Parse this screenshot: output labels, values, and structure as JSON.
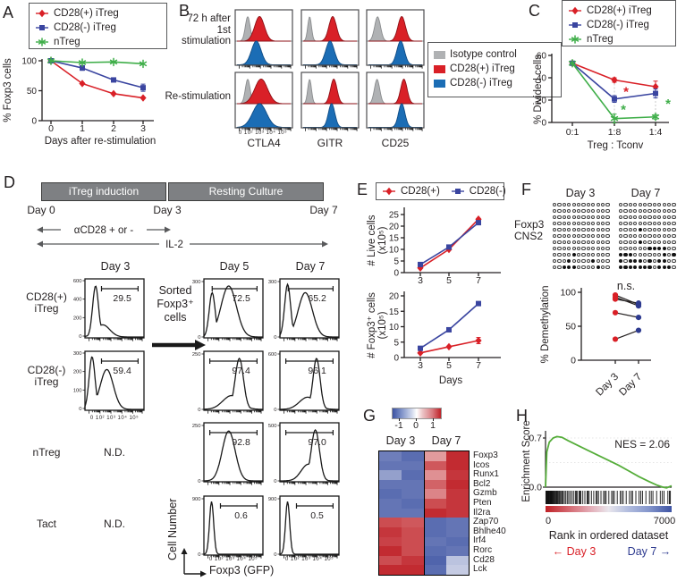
{
  "panel_a": {
    "label": "A",
    "legend": [
      {
        "text": "CD28(+) iTreg",
        "color": "#d92027",
        "marker": "diamond"
      },
      {
        "text": "CD28(-) iTreg",
        "color": "#3a45a0",
        "marker": "square"
      },
      {
        "text": "nTreg",
        "color": "#3fae49",
        "marker": "star"
      }
    ],
    "chart_data": {
      "type": "line",
      "ylabel": "% Foxp3 cells",
      "xlabel": "Days after re-stimulation",
      "ylim": [
        0,
        100
      ],
      "yticks": [
        0,
        50,
        100
      ],
      "categories": [
        "0",
        "1",
        "2",
        "3"
      ],
      "series": [
        {
          "name": "CD28(+) iTreg",
          "color": "#d92027",
          "marker": "diamond",
          "values": [
            100,
            62,
            45,
            38
          ],
          "err": [
            0,
            0,
            0,
            0
          ]
        },
        {
          "name": "CD28(-) iTreg",
          "color": "#3a45a0",
          "marker": "square",
          "values": [
            100,
            88,
            68,
            55
          ],
          "err": [
            0,
            4,
            0,
            6
          ]
        },
        {
          "name": "nTreg",
          "color": "#3fae49",
          "marker": "star",
          "values": [
            100,
            97,
            98,
            95
          ],
          "err": [
            0,
            0,
            0,
            0
          ]
        }
      ]
    }
  },
  "panel_b": {
    "label": "B",
    "row1_line1": "72 h after",
    "row1_line2": "1st stimulation",
    "row2": "Re-stimulation",
    "markers": [
      "CTLA4",
      "GITR",
      "CD25"
    ],
    "xticks": "0 10² 10³ 10⁴ 10⁵",
    "legend": [
      {
        "text": "Isotype control",
        "color": "#b0b2b4"
      },
      {
        "text": "CD28(+) iTreg",
        "color": "#d92027"
      },
      {
        "text": "CD28(-) iTreg",
        "color": "#1b6db5"
      }
    ],
    "cells": [
      {
        "row": 0,
        "col": 0,
        "gray": [
          0.2,
          0.045,
          0.85
        ],
        "red": [
          0.42,
          0.09,
          0.95
        ],
        "blue": [
          0.36,
          0.09,
          0.95
        ]
      },
      {
        "row": 0,
        "col": 1,
        "gray": [
          0.12,
          0.035,
          0.85
        ],
        "red": [
          0.55,
          0.07,
          0.95
        ],
        "blue": [
          0.5,
          0.08,
          0.95
        ]
      },
      {
        "row": 0,
        "col": 2,
        "gray": [
          0.17,
          0.055,
          0.85
        ],
        "red": [
          0.62,
          0.07,
          0.95
        ],
        "blue": [
          0.6,
          0.07,
          0.95
        ]
      },
      {
        "row": 1,
        "col": 0,
        "gray": [
          0.2,
          0.045,
          0.85
        ],
        "red": [
          0.45,
          0.12,
          0.95
        ],
        "blue": [
          0.42,
          0.13,
          0.95
        ]
      },
      {
        "row": 1,
        "col": 1,
        "gray": [
          0.12,
          0.035,
          0.85
        ],
        "red": [
          0.57,
          0.06,
          0.95
        ],
        "blue": [
          0.53,
          0.06,
          0.95
        ]
      },
      {
        "row": 1,
        "col": 2,
        "gray": [
          0.16,
          0.05,
          0.85
        ],
        "red": [
          0.66,
          0.06,
          0.95
        ],
        "blue": [
          0.62,
          0.06,
          0.95
        ]
      }
    ]
  },
  "panel_c": {
    "label": "C",
    "legend": [
      {
        "text": "CD28(+) iTreg",
        "color": "#d92027",
        "marker": "diamond"
      },
      {
        "text": "CD28(-) iTreg",
        "color": "#3a45a0",
        "marker": "square"
      },
      {
        "text": "nTreg",
        "color": "#3fae49",
        "marker": "star"
      }
    ],
    "chart_data": {
      "type": "line",
      "ylabel": "% Divided cells",
      "xlabel": "Treg : Tconv",
      "ylim": [
        0,
        60
      ],
      "yticks": [
        0,
        20,
        40,
        60
      ],
      "categories": [
        "0:1",
        "1:8",
        "1:4"
      ],
      "series": [
        {
          "name": "CD28(+) iTreg",
          "color": "#d92027",
          "marker": "diamond",
          "values": [
            53,
            38,
            32
          ],
          "err": [
            0,
            2,
            5
          ]
        },
        {
          "name": "CD28(-) iTreg",
          "color": "#3a45a0",
          "marker": "square",
          "values": [
            53,
            21,
            26
          ],
          "err": [
            0,
            3,
            4
          ]
        },
        {
          "name": "nTreg",
          "color": "#3fae49",
          "marker": "star",
          "values": [
            53,
            3.5,
            5
          ],
          "err": [
            0,
            4,
            2
          ]
        }
      ],
      "annotations": [
        {
          "text": "*",
          "color": "#d92027",
          "xi": 1,
          "dx": 13,
          "y": 27
        },
        {
          "text": "*",
          "color": "#3fae49",
          "xi": 1,
          "dx": 10,
          "y": 11
        },
        {
          "text": "*",
          "color": "#3fae49",
          "xi": 2,
          "dx": 14,
          "y": 16
        }
      ]
    }
  },
  "panel_d": {
    "label": "D",
    "timeline": {
      "box1": "iTreg induction",
      "box2": "Resting Culture",
      "day0": "Day 0",
      "day3": "Day 3",
      "day7": "Day 7",
      "arrow1": "αCD28 + or -",
      "arrow2": "IL-2"
    },
    "col_headers": [
      "Day 3",
      "Day 5",
      "Day 7"
    ],
    "row1_line1": "CD28(+)",
    "row1_line2": "iTreg",
    "row2_line1": "CD28(-)",
    "row2_line2": "iTreg",
    "row3": "nTreg",
    "row4": "Tact",
    "sorted_note": [
      "Sorted",
      "Foxp3⁺",
      "cells"
    ],
    "nd": "N.D.",
    "ylabel": "Cell Number",
    "xlabel": "Foxp3 (GFP)",
    "xticks": "0 10² 10³ 10⁴ 10⁵",
    "histograms": [
      {
        "row": 0,
        "col": 0,
        "yticks": [
          "600",
          "400",
          "200",
          "0"
        ],
        "gate": "29.5",
        "shape": [
          [
            0.18,
            0.05,
            0.92
          ],
          [
            0.3,
            0.12,
            0.22
          ]
        ]
      },
      {
        "row": 0,
        "col": 1,
        "yticks": [
          "300",
          "0"
        ],
        "gate": "72.5",
        "shape": [
          [
            0.14,
            0.05,
            0.8
          ],
          [
            0.42,
            0.13,
            0.92
          ]
        ]
      },
      {
        "row": 0,
        "col": 2,
        "yticks": [
          "300",
          "0"
        ],
        "gate": "65.2",
        "shape": [
          [
            0.13,
            0.05,
            0.95
          ],
          [
            0.43,
            0.12,
            0.8
          ]
        ]
      },
      {
        "row": 1,
        "col": 0,
        "yticks": [
          "300",
          "200",
          "100",
          "0"
        ],
        "gate": "59.4",
        "shape": [
          [
            0.12,
            0.05,
            0.95
          ],
          [
            0.37,
            0.11,
            0.72
          ]
        ]
      },
      {
        "row": 1,
        "col": 1,
        "yticks": [
          "250",
          "0"
        ],
        "gate": "97.4",
        "shape": [
          [
            0.6,
            0.07,
            0.92
          ],
          [
            0.47,
            0.15,
            0.25
          ]
        ]
      },
      {
        "row": 1,
        "col": 2,
        "yticks": [
          "600",
          "0"
        ],
        "gate": "96.1",
        "shape": [
          [
            0.62,
            0.06,
            0.92
          ],
          [
            0.47,
            0.14,
            0.22
          ]
        ]
      },
      {
        "row": 2,
        "col": 1,
        "yticks": [
          "250",
          "0"
        ],
        "gate": "92.8",
        "shape": [
          [
            0.42,
            0.11,
            0.9
          ]
        ]
      },
      {
        "row": 2,
        "col": 2,
        "yticks": [
          "500",
          "0"
        ],
        "gate": "97.0",
        "shape": [
          [
            0.6,
            0.07,
            0.92
          ],
          [
            0.48,
            0.12,
            0.3
          ]
        ]
      },
      {
        "row": 3,
        "col": 1,
        "yticks": [
          "900",
          "0"
        ],
        "gate": "0.6",
        "shape": [
          [
            0.13,
            0.035,
            0.95
          ]
        ]
      },
      {
        "row": 3,
        "col": 2,
        "yticks": [
          "900",
          "0"
        ],
        "gate": "0.5",
        "shape": [
          [
            0.13,
            0.035,
            0.95
          ]
        ]
      }
    ]
  },
  "panel_e": {
    "label": "E",
    "legend": [
      {
        "text": "CD28(+)",
        "color": "#d92027",
        "marker": "diamond"
      },
      {
        "text": "CD28(-)",
        "color": "#3a45a0",
        "marker": "square"
      }
    ],
    "chart_data_live": {
      "type": "line",
      "ylabel": [
        "# Live cells",
        "(x10⁵)"
      ],
      "ylim": [
        0,
        25
      ],
      "yticks": [
        0,
        5,
        10,
        15,
        20,
        25
      ],
      "categories": [
        "3",
        "5",
        "7"
      ],
      "series": [
        {
          "name": "CD28(+)",
          "color": "#d92027",
          "marker": "diamond",
          "values": [
            2,
            10,
            23
          ]
        },
        {
          "name": "CD28(-)",
          "color": "#3a45a0",
          "marker": "square",
          "values": [
            3.5,
            11,
            21.5
          ]
        }
      ]
    },
    "chart_data_foxp3": {
      "type": "line",
      "ylabel": [
        "# Foxp3⁺ cells",
        "(x10⁵)"
      ],
      "xlabel": "Days",
      "ylim": [
        0,
        20
      ],
      "yticks": [
        0,
        5,
        10,
        15,
        20
      ],
      "categories": [
        "3",
        "5",
        "7"
      ],
      "series": [
        {
          "name": "CD28(+)",
          "color": "#d92027",
          "marker": "diamond",
          "values": [
            1.5,
            3.5,
            5.5
          ],
          "err": [
            0,
            0,
            1
          ]
        },
        {
          "name": "CD28(-)",
          "color": "#3a45a0",
          "marker": "square",
          "values": [
            3,
            9,
            17.5
          ]
        }
      ]
    }
  },
  "panel_f": {
    "label": "F",
    "headers": [
      "Day 3",
      "Day 7"
    ],
    "gene_label_line1": "Foxp3",
    "gene_label_line2": "CNS2",
    "grid_day3": [
      "000000000000",
      "000000000000",
      "000000000000",
      "000000000000",
      "000000000000",
      "000000000000",
      "000000000000",
      "000000000000",
      "000010000000",
      "000100001000",
      "001110000100"
    ],
    "grid_day7": [
      "000000000000",
      "000000000000",
      "000000000000",
      "000000000000",
      "000010000000",
      "000000000000",
      "000010000000",
      "000000111100",
      "111000000101",
      "101110101100",
      "111111101110"
    ],
    "chart_data": {
      "type": "paired-scatter",
      "ylabel": "% Demethylation",
      "ylim": [
        0,
        100
      ],
      "yticks": [
        0,
        50,
        100
      ],
      "note": "n.s.",
      "groups": [
        "Day 3",
        "Day 7"
      ],
      "pairs": [
        [
          96,
          82
        ],
        [
          93,
          80
        ],
        [
          90,
          84
        ],
        [
          70,
          63
        ],
        [
          31,
          44
        ]
      ],
      "day3_color": "#d92027",
      "day7_color": "#2d3a8f"
    }
  },
  "panel_g": {
    "label": "G",
    "colorbar_ticks": [
      "-1",
      "0",
      "1"
    ],
    "headers": [
      "Day 3",
      "Day 7"
    ],
    "chart_data": {
      "type": "heatmap",
      "col_groups": [
        "Day 3",
        "Day 7"
      ],
      "scale": [
        -1,
        1
      ],
      "genes": [
        "Foxp3",
        "Icos",
        "Runx1",
        "Bcl2",
        "Gzmb",
        "Pten",
        "Il2ra",
        "Zap70",
        "Bhlhe40",
        "Irf4",
        "Rorc",
        "Cd28",
        "Lck"
      ],
      "values": [
        [
          -0.75,
          -0.85,
          0.45,
          0.95
        ],
        [
          -0.8,
          -0.8,
          0.75,
          0.95
        ],
        [
          -0.55,
          -0.85,
          0.5,
          0.9
        ],
        [
          -0.8,
          -0.8,
          0.7,
          0.95
        ],
        [
          -0.85,
          -0.8,
          0.55,
          0.9
        ],
        [
          -0.8,
          -0.85,
          0.8,
          0.9
        ],
        [
          -0.8,
          -0.8,
          0.95,
          0.9
        ],
        [
          0.8,
          0.75,
          -0.85,
          -0.8
        ],
        [
          0.9,
          0.8,
          -0.85,
          -0.8
        ],
        [
          0.85,
          0.8,
          -0.8,
          -0.85
        ],
        [
          0.95,
          0.8,
          -0.85,
          -0.8
        ],
        [
          0.8,
          0.9,
          -0.9,
          -0.35
        ],
        [
          0.95,
          0.95,
          -0.85,
          -0.3
        ]
      ]
    }
  },
  "panel_h": {
    "label": "H",
    "chart_data": {
      "type": "gsea",
      "ylabel": "Enrichment Score",
      "yticks": [
        "0.7",
        "0.0"
      ],
      "nes": "NES = 2.06",
      "xlabel": "Rank in ordered dataset",
      "xticks": [
        "0",
        "7000"
      ],
      "day3_label": "← Day 3",
      "day7_label": "Day 7 →",
      "day3_color": "#d92027",
      "day7_color": "#2d3a8f",
      "curve": [
        [
          0,
          0
        ],
        [
          1,
          0.5
        ],
        [
          3,
          0.64
        ],
        [
          6,
          0.7
        ],
        [
          9,
          0.72
        ],
        [
          13,
          0.71
        ],
        [
          18,
          0.66
        ],
        [
          25,
          0.6
        ],
        [
          33,
          0.53
        ],
        [
          41,
          0.46
        ],
        [
          50,
          0.38
        ],
        [
          58,
          0.31
        ],
        [
          66,
          0.23
        ],
        [
          74,
          0.15
        ],
        [
          82,
          0.08
        ],
        [
          88,
          0.03
        ],
        [
          93,
          0.0
        ],
        [
          96,
          -0.01
        ],
        [
          100,
          0.02
        ]
      ],
      "hits": [
        0.3,
        0.8,
        1.2,
        1.7,
        2.1,
        2.5,
        2.8,
        3.2,
        3.6,
        4.0,
        4.3,
        4.8,
        5.3,
        5.7,
        6.2,
        6.8,
        7.3,
        7.9,
        8.6,
        9.2,
        9.9,
        10.7,
        11.4,
        12.2,
        13.1,
        14.0,
        15.0,
        16.1,
        17.2,
        18.4,
        19.6,
        20.9,
        22.2,
        23.6,
        24.3,
        25.0,
        26.5,
        27.2,
        28.0,
        29.6,
        31.2,
        32.9,
        33.7,
        34.6,
        36.4,
        38.2,
        40.1,
        41.0,
        42.0,
        44.0,
        46.0,
        47.0,
        48.1,
        50.2,
        52.4,
        53.5,
        54.6,
        56.9,
        59.2,
        60.4,
        61.6,
        64.0,
        66.5,
        68.0,
        69.0,
        71.6,
        74.2,
        75.5,
        76.9,
        79.6,
        82.4,
        83.8,
        85.2,
        88.1,
        91.0,
        92.5,
        94.0,
        97.0,
        98.2,
        99.0
      ]
    }
  }
}
